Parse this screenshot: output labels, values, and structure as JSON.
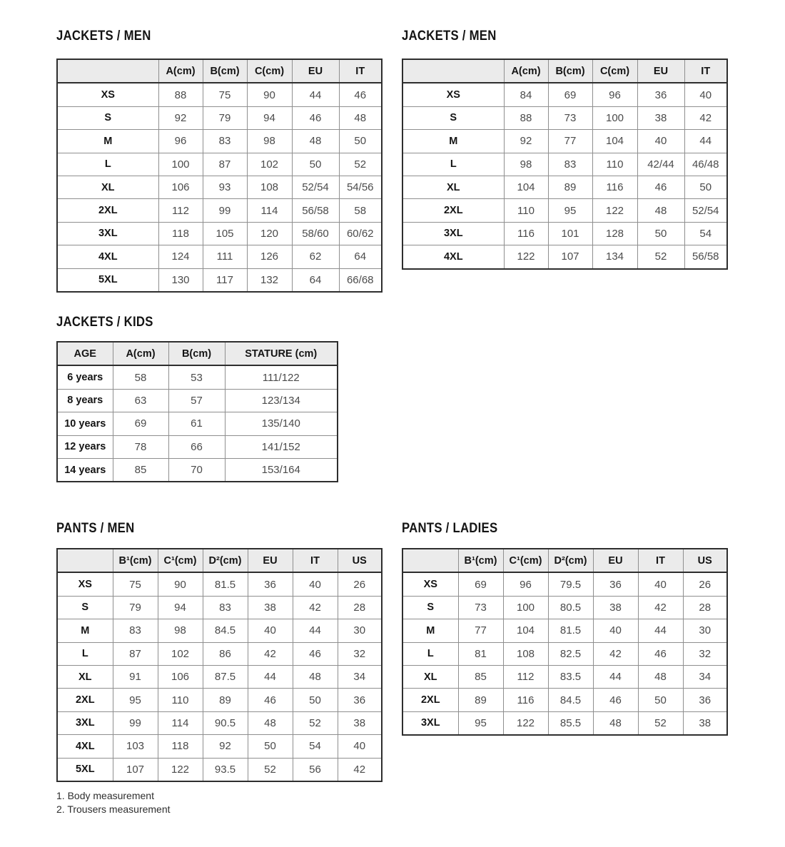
{
  "footnotes": [
    "1. Body measurement",
    "2. Trousers measurement"
  ],
  "tables": [
    {
      "id": "jackets-men-left",
      "title": "JACKETS / MEN",
      "kind": "jackets",
      "columns": [
        "",
        "A(cm)",
        "B(cm)",
        "C(cm)",
        "EU",
        "IT"
      ],
      "rows": [
        [
          "XS",
          "88",
          "75",
          "90",
          "44",
          "46"
        ],
        [
          "S",
          "92",
          "79",
          "94",
          "46",
          "48"
        ],
        [
          "M",
          "96",
          "83",
          "98",
          "48",
          "50"
        ],
        [
          "L",
          "100",
          "87",
          "102",
          "50",
          "52"
        ],
        [
          "XL",
          "106",
          "93",
          "108",
          "52/54",
          "54/56"
        ],
        [
          "2XL",
          "112",
          "99",
          "114",
          "56/58",
          "58"
        ],
        [
          "3XL",
          "118",
          "105",
          "120",
          "58/60",
          "60/62"
        ],
        [
          "4XL",
          "124",
          "111",
          "126",
          "62",
          "64"
        ],
        [
          "5XL",
          "130",
          "117",
          "132",
          "64",
          "66/68"
        ]
      ]
    },
    {
      "id": "jackets-men-right",
      "title": "JACKETS / MEN",
      "kind": "jackets",
      "columns": [
        "",
        "A(cm)",
        "B(cm)",
        "C(cm)",
        "EU",
        "IT"
      ],
      "rows": [
        [
          "XS",
          "84",
          "69",
          "96",
          "36",
          "40"
        ],
        [
          "S",
          "88",
          "73",
          "100",
          "38",
          "42"
        ],
        [
          "M",
          "92",
          "77",
          "104",
          "40",
          "44"
        ],
        [
          "L",
          "98",
          "83",
          "110",
          "42/44",
          "46/48"
        ],
        [
          "XL",
          "104",
          "89",
          "116",
          "46",
          "50"
        ],
        [
          "2XL",
          "110",
          "95",
          "122",
          "48",
          "52/54"
        ],
        [
          "3XL",
          "116",
          "101",
          "128",
          "50",
          "54"
        ],
        [
          "4XL",
          "122",
          "107",
          "134",
          "52",
          "56/58"
        ]
      ]
    },
    {
      "id": "jackets-kids",
      "title": "JACKETS / KIDS",
      "kind": "kids",
      "columns": [
        "AGE",
        "A(cm)",
        "B(cm)",
        "STATURE (cm)"
      ],
      "rows": [
        [
          "6 years",
          "58",
          "53",
          "111/122"
        ],
        [
          "8 years",
          "63",
          "57",
          "123/134"
        ],
        [
          "10 years",
          "69",
          "61",
          "135/140"
        ],
        [
          "12 years",
          "78",
          "66",
          "141/152"
        ],
        [
          "14 years",
          "85",
          "70",
          "153/164"
        ]
      ]
    },
    {
      "id": "pants-men",
      "title": "PANTS / MEN",
      "kind": "pants",
      "columns": [
        "",
        "B¹(cm)",
        "C¹(cm)",
        "D²(cm)",
        "EU",
        "IT",
        "US"
      ],
      "rows": [
        [
          "XS",
          "75",
          "90",
          "81.5",
          "36",
          "40",
          "26"
        ],
        [
          "S",
          "79",
          "94",
          "83",
          "38",
          "42",
          "28"
        ],
        [
          "M",
          "83",
          "98",
          "84.5",
          "40",
          "44",
          "30"
        ],
        [
          "L",
          "87",
          "102",
          "86",
          "42",
          "46",
          "32"
        ],
        [
          "XL",
          "91",
          "106",
          "87.5",
          "44",
          "48",
          "34"
        ],
        [
          "2XL",
          "95",
          "110",
          "89",
          "46",
          "50",
          "36"
        ],
        [
          "3XL",
          "99",
          "114",
          "90.5",
          "48",
          "52",
          "38"
        ],
        [
          "4XL",
          "103",
          "118",
          "92",
          "50",
          "54",
          "40"
        ],
        [
          "5XL",
          "107",
          "122",
          "93.5",
          "52",
          "56",
          "42"
        ]
      ]
    },
    {
      "id": "pants-ladies",
      "title": "PANTS / LADIES",
      "kind": "pants",
      "columns": [
        "",
        "B¹(cm)",
        "C¹(cm)",
        "D²(cm)",
        "EU",
        "IT",
        "US"
      ],
      "rows": [
        [
          "XS",
          "69",
          "96",
          "79.5",
          "36",
          "40",
          "26"
        ],
        [
          "S",
          "73",
          "100",
          "80.5",
          "38",
          "42",
          "28"
        ],
        [
          "M",
          "77",
          "104",
          "81.5",
          "40",
          "44",
          "30"
        ],
        [
          "L",
          "81",
          "108",
          "82.5",
          "42",
          "46",
          "32"
        ],
        [
          "XL",
          "85",
          "112",
          "83.5",
          "44",
          "48",
          "34"
        ],
        [
          "2XL",
          "89",
          "116",
          "84.5",
          "46",
          "50",
          "36"
        ],
        [
          "3XL",
          "95",
          "122",
          "85.5",
          "48",
          "52",
          "38"
        ]
      ]
    }
  ]
}
